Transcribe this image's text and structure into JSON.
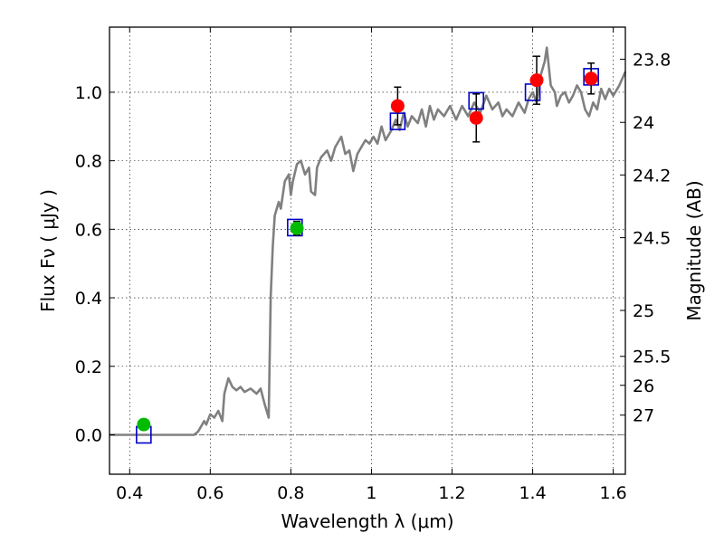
{
  "chart_data": {
    "type": "scatter",
    "xlabel": "Wavelength  λ (μm)",
    "ylabel": "Flux  Fν  ( μJy )",
    "ylabel_right": "Magnitude (AB)",
    "xlim": [
      0.35,
      1.63
    ],
    "ylim": [
      -0.115,
      1.19
    ],
    "grid": true,
    "x_ticks": [
      0.4,
      0.6,
      0.8,
      1.0,
      1.2,
      1.4,
      1.6
    ],
    "x_tick_labels": [
      "0.4",
      "0.6",
      "0.8",
      "1",
      "1.2",
      "1.4",
      "1.6"
    ],
    "y_ticks": [
      0.0,
      0.2,
      0.4,
      0.6,
      0.8,
      1.0
    ],
    "y_tick_labels": [
      "0.0",
      "0.2",
      "0.4",
      "0.6",
      "0.8",
      "1.0"
    ],
    "mag_ticks": [
      23.8,
      24,
      24.2,
      24.5,
      25,
      25.5,
      26,
      27
    ],
    "mag_tick_labels": [
      "23.8",
      "24",
      "24.2",
      "24.5",
      "25",
      "25.5",
      "26",
      "27"
    ],
    "mag_zero_point": 23.9,
    "series": [
      {
        "kind": "template_sed_line",
        "color": "#808080",
        "points": [
          [
            0.35,
            0.0
          ],
          [
            0.56,
            0.0
          ],
          [
            0.57,
            0.01
          ],
          [
            0.58,
            0.03
          ],
          [
            0.585,
            0.04
          ],
          [
            0.59,
            0.03
          ],
          [
            0.6,
            0.06
          ],
          [
            0.61,
            0.05
          ],
          [
            0.62,
            0.07
          ],
          [
            0.63,
            0.04
          ],
          [
            0.635,
            0.12
          ],
          [
            0.645,
            0.165
          ],
          [
            0.655,
            0.14
          ],
          [
            0.665,
            0.13
          ],
          [
            0.675,
            0.14
          ],
          [
            0.685,
            0.125
          ],
          [
            0.7,
            0.135
          ],
          [
            0.715,
            0.12
          ],
          [
            0.725,
            0.135
          ],
          [
            0.735,
            0.09
          ],
          [
            0.745,
            0.05
          ],
          [
            0.75,
            0.4
          ],
          [
            0.755,
            0.55
          ],
          [
            0.76,
            0.64
          ],
          [
            0.77,
            0.68
          ],
          [
            0.775,
            0.66
          ],
          [
            0.785,
            0.74
          ],
          [
            0.795,
            0.76
          ],
          [
            0.8,
            0.7
          ],
          [
            0.805,
            0.74
          ],
          [
            0.815,
            0.79
          ],
          [
            0.825,
            0.8
          ],
          [
            0.835,
            0.76
          ],
          [
            0.845,
            0.78
          ],
          [
            0.85,
            0.71
          ],
          [
            0.86,
            0.7
          ],
          [
            0.865,
            0.78
          ],
          [
            0.875,
            0.81
          ],
          [
            0.89,
            0.83
          ],
          [
            0.9,
            0.8
          ],
          [
            0.91,
            0.84
          ],
          [
            0.925,
            0.87
          ],
          [
            0.935,
            0.82
          ],
          [
            0.945,
            0.83
          ],
          [
            0.955,
            0.77
          ],
          [
            0.965,
            0.82
          ],
          [
            0.975,
            0.84
          ],
          [
            0.985,
            0.86
          ],
          [
            0.995,
            0.85
          ],
          [
            1.005,
            0.87
          ],
          [
            1.015,
            0.85
          ],
          [
            1.025,
            0.9
          ],
          [
            1.035,
            0.86
          ],
          [
            1.05,
            0.89
          ],
          [
            1.06,
            0.92
          ],
          [
            1.07,
            0.89
          ],
          [
            1.08,
            0.94
          ],
          [
            1.09,
            0.9
          ],
          [
            1.1,
            0.93
          ],
          [
            1.115,
            0.91
          ],
          [
            1.125,
            0.95
          ],
          [
            1.135,
            0.9
          ],
          [
            1.145,
            0.96
          ],
          [
            1.155,
            0.92
          ],
          [
            1.165,
            0.95
          ],
          [
            1.18,
            0.93
          ],
          [
            1.195,
            0.96
          ],
          [
            1.21,
            0.92
          ],
          [
            1.225,
            0.96
          ],
          [
            1.24,
            0.93
          ],
          [
            1.255,
            0.97
          ],
          [
            1.27,
            0.94
          ],
          [
            1.285,
            0.99
          ],
          [
            1.3,
            0.95
          ],
          [
            1.315,
            0.97
          ],
          [
            1.325,
            0.93
          ],
          [
            1.335,
            0.95
          ],
          [
            1.35,
            0.93
          ],
          [
            1.365,
            0.97
          ],
          [
            1.38,
            0.94
          ],
          [
            1.39,
            0.98
          ],
          [
            1.4,
            1.0
          ],
          [
            1.41,
            0.97
          ],
          [
            1.42,
            1.05
          ],
          [
            1.43,
            1.09
          ],
          [
            1.435,
            1.13
          ],
          [
            1.445,
            1.02
          ],
          [
            1.455,
            1.0
          ],
          [
            1.46,
            0.96
          ],
          [
            1.47,
            0.99
          ],
          [
            1.48,
            1.0
          ],
          [
            1.49,
            0.97
          ],
          [
            1.5,
            0.99
          ],
          [
            1.51,
            1.02
          ],
          [
            1.52,
            1.0
          ],
          [
            1.53,
            0.95
          ],
          [
            1.54,
            0.93
          ],
          [
            1.55,
            0.97
          ],
          [
            1.56,
            0.95
          ],
          [
            1.57,
            1.01
          ],
          [
            1.58,
            0.98
          ],
          [
            1.59,
            1.01
          ],
          [
            1.6,
            0.99
          ],
          [
            1.615,
            1.02
          ],
          [
            1.63,
            1.06
          ]
        ]
      },
      {
        "kind": "model_fluxes_squares",
        "color": "#0000cc",
        "x": [
          0.435,
          0.81,
          1.065,
          1.26,
          1.4,
          1.545
        ],
        "y": [
          0.0,
          0.605,
          0.915,
          0.975,
          1.0,
          1.045
        ]
      },
      {
        "kind": "observed_fluxes",
        "color": "#ff0000",
        "x": [
          1.065,
          1.26,
          1.41,
          1.545
        ],
        "y": [
          0.96,
          0.925,
          1.035,
          1.04
        ],
        "yerr": [
          0.055,
          0.07,
          0.07,
          0.045
        ]
      },
      {
        "kind": "observed_fluxes",
        "color": "#00bb00",
        "x": [
          0.435,
          0.815
        ],
        "y": [
          0.03,
          0.603
        ],
        "yerr": [
          0.015,
          0.02
        ]
      }
    ]
  }
}
